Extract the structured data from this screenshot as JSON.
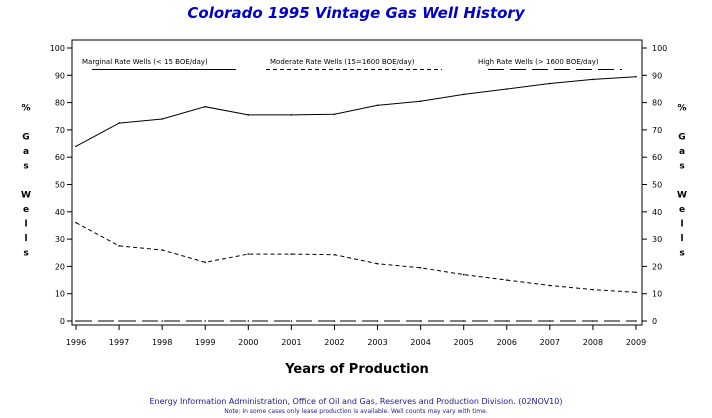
{
  "title": "Colorado 1995 Vintage Gas Well History",
  "footer": {
    "source": "Energy Information Administration, Office of Oil and Gas, Reserves and Production Division. (02NOV10)",
    "note": "Note: In some cases only lease production is available. Well counts may vary with time."
  },
  "chart_data": {
    "type": "line",
    "title": "Colorado 1995 Vintage Gas Well History",
    "xlabel": "Years of Production",
    "ylabel": "% Gas Wells",
    "ylim": [
      0,
      100
    ],
    "yticks": [
      0,
      10,
      20,
      30,
      40,
      50,
      60,
      70,
      80,
      90,
      100
    ],
    "x": [
      "1996",
      "1997",
      "1998",
      "1999",
      "2000",
      "2001",
      "2002",
      "2003",
      "2004",
      "2005",
      "2006",
      "2007",
      "2008",
      "2009"
    ],
    "grid": false,
    "legend_position": "top",
    "series": [
      {
        "name": "Marginal Rate Wells (< 15 BOE/day)",
        "style": "solid",
        "color": "#000000",
        "values": [
          64,
          72.5,
          74,
          78.5,
          75.5,
          75.5,
          75.7,
          79,
          80.5,
          83,
          85,
          87,
          88.5,
          89.5
        ]
      },
      {
        "name": "Moderate Rate Wells (15=1600 BOE/day)",
        "style": "short-dash",
        "color": "#000000",
        "values": [
          36,
          27.5,
          26,
          21.5,
          24.5,
          24.5,
          24.3,
          21,
          19.5,
          17,
          15,
          13,
          11.5,
          10.5
        ]
      },
      {
        "name": "High Rate Wells (> 1600 BOE/day)",
        "style": "long-dash",
        "color": "#000000",
        "values": [
          0,
          0,
          0,
          0,
          0,
          0,
          0,
          0,
          0,
          0,
          0,
          0,
          0,
          0
        ]
      }
    ]
  }
}
